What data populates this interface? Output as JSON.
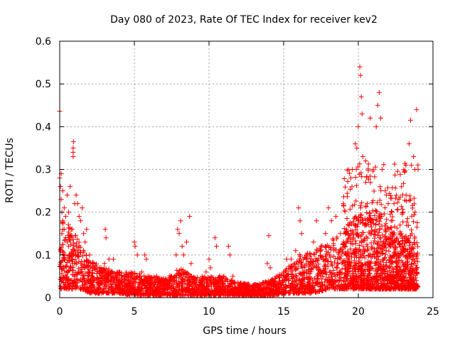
{
  "chart_data": {
    "type": "scatter",
    "title": "Day 080 of 2023, Rate Of TEC Index for receiver kev2",
    "xlabel": "GPS time / hours",
    "ylabel": "ROTI / TECUs",
    "xlim": [
      0,
      25
    ],
    "ylim": [
      0,
      0.6
    ],
    "xticks": [
      "0",
      "5",
      "10",
      "15",
      "20",
      "25"
    ],
    "xtick_values": [
      0,
      5,
      10,
      15,
      20,
      25
    ],
    "yticks": [
      "0",
      "0.1",
      "0.2",
      "0.3",
      "0.4",
      "0.5",
      "0.6"
    ],
    "ytick_values": [
      0,
      0.1,
      0.2,
      0.3,
      0.4,
      0.5,
      0.6
    ],
    "grid": true,
    "marker": "+",
    "color": "#ff0000",
    "series": [
      {
        "points": [
          [
            0.0,
            0.436
          ],
          [
            0.0,
            0.28
          ],
          [
            0.05,
            0.26
          ],
          [
            0.1,
            0.23
          ],
          [
            0.1,
            0.29
          ],
          [
            0.15,
            0.2
          ],
          [
            0.2,
            0.18
          ],
          [
            0.2,
            0.25
          ],
          [
            0.3,
            0.16
          ],
          [
            0.3,
            0.21
          ],
          [
            0.4,
            0.14
          ],
          [
            0.4,
            0.19
          ],
          [
            0.5,
            0.13
          ],
          [
            0.5,
            0.24
          ],
          [
            0.6,
            0.12
          ],
          [
            0.6,
            0.2
          ],
          [
            0.7,
            0.1
          ],
          [
            0.7,
            0.26
          ],
          [
            0.8,
            0.09
          ],
          [
            0.8,
            0.16
          ],
          [
            0.9,
            0.35
          ],
          [
            0.9,
            0.34
          ],
          [
            0.9,
            0.33
          ],
          [
            0.92,
            0.365
          ],
          [
            1.0,
            0.08
          ],
          [
            1.0,
            0.22
          ],
          [
            1.1,
            0.24
          ],
          [
            1.1,
            0.12
          ],
          [
            1.2,
            0.22
          ],
          [
            1.3,
            0.19
          ],
          [
            1.4,
            0.18
          ],
          [
            1.5,
            0.21
          ],
          [
            1.6,
            0.15
          ],
          [
            1.7,
            0.13
          ],
          [
            1.8,
            0.16
          ],
          [
            2.0,
            0.1
          ],
          [
            2.2,
            0.08
          ],
          [
            2.5,
            0.07
          ],
          [
            2.8,
            0.065
          ],
          [
            3.0,
            0.08
          ],
          [
            3.05,
            0.16
          ],
          [
            3.1,
            0.14
          ],
          [
            3.3,
            0.09
          ],
          [
            3.5,
            0.06
          ],
          [
            3.6,
            0.09
          ],
          [
            4.0,
            0.06
          ],
          [
            4.3,
            0.05
          ],
          [
            4.6,
            0.05
          ],
          [
            5.0,
            0.13
          ],
          [
            5.05,
            0.12
          ],
          [
            5.2,
            0.1
          ],
          [
            5.5,
            0.06
          ],
          [
            5.7,
            0.1
          ],
          [
            5.8,
            0.09
          ],
          [
            6.0,
            0.05
          ],
          [
            6.5,
            0.05
          ],
          [
            7.0,
            0.04
          ],
          [
            7.5,
            0.05
          ],
          [
            7.8,
            0.1
          ],
          [
            7.9,
            0.16
          ],
          [
            8.0,
            0.15
          ],
          [
            8.1,
            0.18
          ],
          [
            8.2,
            0.12
          ],
          [
            8.3,
            0.1
          ],
          [
            8.5,
            0.13
          ],
          [
            8.7,
            0.19
          ],
          [
            8.8,
            0.08
          ],
          [
            9.0,
            0.04
          ],
          [
            9.5,
            0.04
          ],
          [
            9.8,
            0.06
          ],
          [
            10.0,
            0.09
          ],
          [
            10.1,
            0.07
          ],
          [
            10.4,
            0.14
          ],
          [
            10.5,
            0.12
          ],
          [
            10.7,
            0.05
          ],
          [
            11.0,
            0.05
          ],
          [
            11.3,
            0.12
          ],
          [
            11.4,
            0.1
          ],
          [
            11.6,
            0.05
          ],
          [
            12.0,
            0.03
          ],
          [
            12.5,
            0.03
          ],
          [
            13.0,
            0.02
          ],
          [
            13.5,
            0.03
          ],
          [
            13.9,
            0.08
          ],
          [
            14.0,
            0.145
          ],
          [
            14.1,
            0.07
          ],
          [
            14.5,
            0.05
          ],
          [
            15.0,
            0.06
          ],
          [
            15.2,
            0.09
          ],
          [
            15.5,
            0.09
          ],
          [
            15.8,
            0.11
          ],
          [
            16.0,
            0.21
          ],
          [
            16.1,
            0.18
          ],
          [
            16.2,
            0.15
          ],
          [
            16.5,
            0.1
          ],
          [
            16.8,
            0.08
          ],
          [
            17.0,
            0.13
          ],
          [
            17.2,
            0.18
          ],
          [
            17.5,
            0.12
          ],
          [
            17.8,
            0.15
          ],
          [
            18.0,
            0.21
          ],
          [
            18.2,
            0.18
          ],
          [
            18.5,
            0.19
          ],
          [
            18.8,
            0.15
          ],
          [
            19.0,
            0.22
          ],
          [
            19.2,
            0.16
          ],
          [
            19.5,
            0.28
          ],
          [
            19.6,
            0.3
          ],
          [
            19.8,
            0.36
          ],
          [
            19.9,
            0.35
          ],
          [
            20.0,
            0.4
          ],
          [
            20.1,
            0.54
          ],
          [
            20.15,
            0.52
          ],
          [
            20.2,
            0.47
          ],
          [
            20.25,
            0.43
          ],
          [
            20.3,
            0.33
          ],
          [
            20.5,
            0.27
          ],
          [
            20.6,
            0.22
          ],
          [
            20.8,
            0.42
          ],
          [
            21.0,
            0.3
          ],
          [
            21.2,
            0.4
          ],
          [
            21.3,
            0.45
          ],
          [
            21.4,
            0.48
          ],
          [
            21.5,
            0.42
          ],
          [
            21.6,
            0.3
          ],
          [
            21.8,
            0.25
          ],
          [
            22.0,
            0.22
          ],
          [
            22.2,
            0.18
          ],
          [
            22.5,
            0.12
          ],
          [
            22.8,
            0.15
          ],
          [
            23.0,
            0.2
          ],
          [
            23.2,
            0.24
          ],
          [
            23.4,
            0.36
          ],
          [
            23.5,
            0.415
          ],
          [
            23.7,
            0.33
          ],
          [
            23.8,
            0.2
          ],
          [
            23.9,
            0.44
          ],
          [
            24.0,
            0.3
          ]
        ]
      }
    ],
    "density": {
      "description_free_envelope": [
        [
          0.0,
          0.02,
          0.2
        ],
        [
          0.5,
          0.02,
          0.18
        ],
        [
          1.0,
          0.02,
          0.15
        ],
        [
          1.5,
          0.02,
          0.12
        ],
        [
          2.0,
          0.01,
          0.09
        ],
        [
          3.0,
          0.01,
          0.07
        ],
        [
          4.0,
          0.01,
          0.06
        ],
        [
          5.0,
          0.005,
          0.06
        ],
        [
          6.0,
          0.005,
          0.05
        ],
        [
          7.0,
          0.005,
          0.045
        ],
        [
          8.0,
          0.005,
          0.07
        ],
        [
          9.0,
          0.005,
          0.05
        ],
        [
          10.0,
          0.005,
          0.05
        ],
        [
          11.0,
          0.005,
          0.05
        ],
        [
          12.0,
          0.005,
          0.035
        ],
        [
          13.0,
          0.005,
          0.03
        ],
        [
          14.0,
          0.005,
          0.04
        ],
        [
          15.0,
          0.01,
          0.06
        ],
        [
          16.0,
          0.01,
          0.1
        ],
        [
          17.0,
          0.01,
          0.11
        ],
        [
          18.0,
          0.02,
          0.13
        ],
        [
          19.0,
          0.02,
          0.16
        ],
        [
          20.0,
          0.02,
          0.2
        ],
        [
          21.0,
          0.02,
          0.2
        ],
        [
          22.0,
          0.02,
          0.17
        ],
        [
          23.0,
          0.02,
          0.15
        ],
        [
          24.0,
          0.02,
          0.13
        ]
      ]
    }
  }
}
